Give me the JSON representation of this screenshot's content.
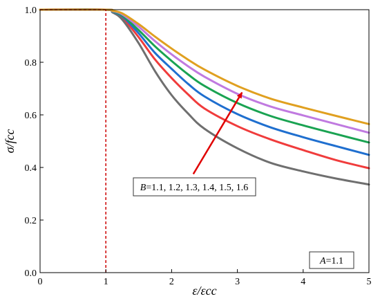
{
  "chart_data": {
    "type": "line",
    "xlabel": "ε/εcc",
    "ylabel": "σ/fcc",
    "xlim": [
      0,
      5
    ],
    "ylim": [
      0,
      1.0
    ],
    "x_ticks": [
      0,
      1,
      2,
      3,
      4,
      5
    ],
    "y_ticks": [
      0.0,
      0.2,
      0.4,
      0.6,
      0.8,
      1.0
    ],
    "grid": false,
    "peak_line": {
      "x": 1.0,
      "y": 1.0,
      "color": "#cc0000",
      "style": "dashed"
    },
    "series": [
      {
        "color": "#f03c3c",
        "values": [
          [
            1.0,
            1.0
          ],
          [
            1.1,
            0.992
          ],
          [
            1.25,
            0.97
          ],
          [
            1.5,
            0.895
          ],
          [
            1.75,
            0.81
          ],
          [
            2.0,
            0.74
          ],
          [
            2.25,
            0.678
          ],
          [
            2.5,
            0.624
          ],
          [
            3.0,
            0.557
          ],
          [
            3.5,
            0.507
          ],
          [
            4.0,
            0.466
          ],
          [
            4.5,
            0.428
          ],
          [
            5.0,
            0.397
          ]
        ]
      },
      {
        "color": "#6f6f6f",
        "values": [
          [
            1.0,
            1.0
          ],
          [
            1.1,
            0.99
          ],
          [
            1.25,
            0.962
          ],
          [
            1.5,
            0.872
          ],
          [
            1.75,
            0.765
          ],
          [
            2.0,
            0.675
          ],
          [
            2.25,
            0.605
          ],
          [
            2.5,
            0.547
          ],
          [
            3.0,
            0.473
          ],
          [
            3.5,
            0.418
          ],
          [
            4.0,
            0.385
          ],
          [
            4.5,
            0.358
          ],
          [
            5.0,
            0.335
          ]
        ]
      },
      {
        "color": "#1f6fcf",
        "values": [
          [
            1.0,
            1.0
          ],
          [
            1.1,
            0.993
          ],
          [
            1.25,
            0.975
          ],
          [
            1.5,
            0.91
          ],
          [
            1.75,
            0.835
          ],
          [
            2.0,
            0.775
          ],
          [
            2.25,
            0.718
          ],
          [
            2.5,
            0.67
          ],
          [
            3.0,
            0.603
          ],
          [
            3.5,
            0.553
          ],
          [
            4.0,
            0.515
          ],
          [
            4.5,
            0.481
          ],
          [
            5.0,
            0.448
          ]
        ]
      },
      {
        "color": "#1aa352",
        "values": [
          [
            1.0,
            1.0
          ],
          [
            1.1,
            0.994
          ],
          [
            1.25,
            0.978
          ],
          [
            1.5,
            0.922
          ],
          [
            1.75,
            0.86
          ],
          [
            2.0,
            0.805
          ],
          [
            2.25,
            0.754
          ],
          [
            2.5,
            0.71
          ],
          [
            3.0,
            0.645
          ],
          [
            3.5,
            0.596
          ],
          [
            4.0,
            0.56
          ],
          [
            4.5,
            0.527
          ],
          [
            5.0,
            0.495
          ]
        ]
      },
      {
        "color": "#c07ae0",
        "values": [
          [
            1.0,
            1.0
          ],
          [
            1.1,
            0.995
          ],
          [
            1.25,
            0.982
          ],
          [
            1.5,
            0.935
          ],
          [
            1.75,
            0.88
          ],
          [
            2.0,
            0.83
          ],
          [
            2.25,
            0.785
          ],
          [
            2.5,
            0.745
          ],
          [
            3.0,
            0.68
          ],
          [
            3.5,
            0.632
          ],
          [
            4.0,
            0.598
          ],
          [
            4.5,
            0.565
          ],
          [
            5.0,
            0.532
          ]
        ]
      },
      {
        "color": "#e0a020",
        "values": [
          [
            1.0,
            1.0
          ],
          [
            1.1,
            0.996
          ],
          [
            1.25,
            0.986
          ],
          [
            1.5,
            0.945
          ],
          [
            1.75,
            0.897
          ],
          [
            2.0,
            0.852
          ],
          [
            2.25,
            0.81
          ],
          [
            2.5,
            0.772
          ],
          [
            3.0,
            0.71
          ],
          [
            3.5,
            0.662
          ],
          [
            4.0,
            0.628
          ],
          [
            4.5,
            0.596
          ],
          [
            5.0,
            0.565
          ]
        ]
      }
    ],
    "annotations": [
      {
        "kind": "arrow",
        "color": "#e00000",
        "from": [
          2.33,
          0.375
        ],
        "to": [
          3.07,
          0.685
        ]
      },
      {
        "kind": "label-box",
        "text": "B=1.1, 1.2, 1.3, 1.4, 1.5, 1.6",
        "position": "middle-center"
      },
      {
        "kind": "label-box",
        "text": "A=1.1",
        "position": "bottom-right"
      }
    ]
  }
}
